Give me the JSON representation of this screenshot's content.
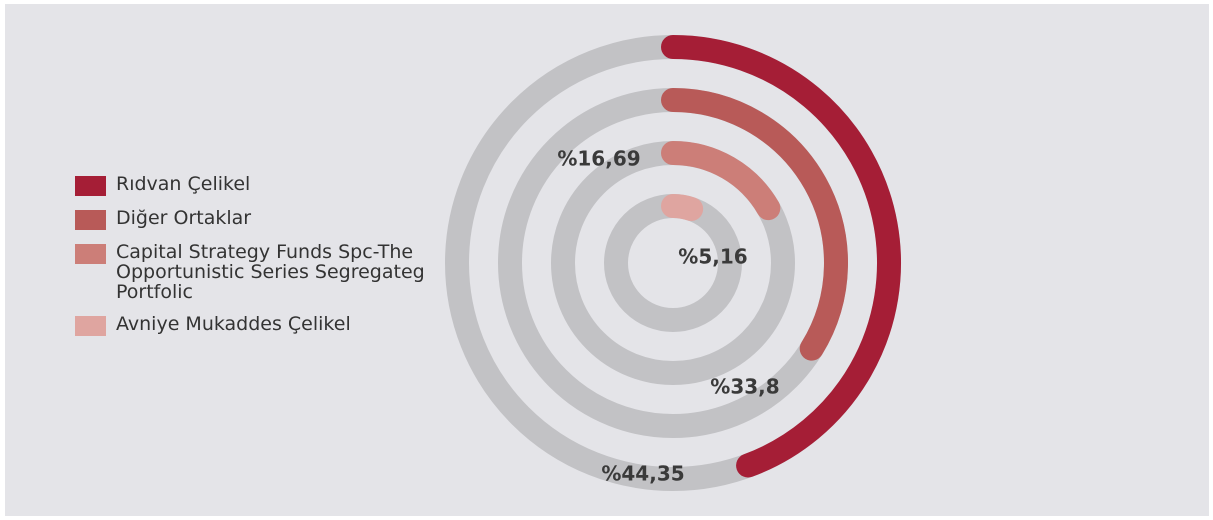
{
  "chart_data": {
    "type": "radial-bar",
    "categories": [
      "Rıdvan Çelikel",
      "Diğer Ortaklar",
      "Capital Strategy Funds Spc-The Opportunistic Series Segregateg Portfolic",
      "Avniye Mukaddes Çelikel"
    ],
    "values": [
      44.35,
      33.8,
      16.69,
      5.16
    ],
    "value_labels": [
      "%44,35",
      "%33,8",
      "%16,69",
      "%5,16"
    ],
    "colors": [
      "#a51e36",
      "#b85a58",
      "#cc7e78",
      "#dfa5a0"
    ],
    "track_color": "#c2c2c5",
    "ylim": [
      0,
      100
    ]
  }
}
